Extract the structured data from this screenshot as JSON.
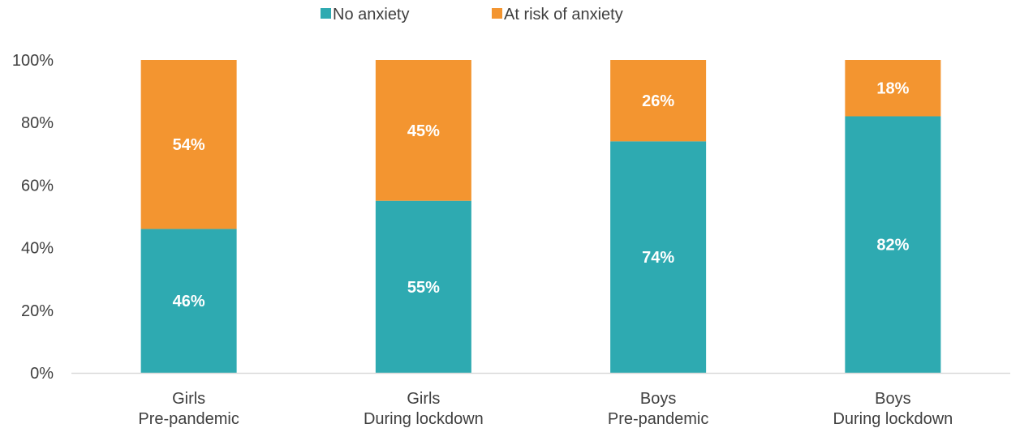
{
  "chart_data": {
    "type": "bar",
    "stacked": true,
    "categories": [
      [
        "Girls",
        "Pre-pandemic"
      ],
      [
        "Girls",
        "During lockdown"
      ],
      [
        "Boys",
        "Pre-pandemic"
      ],
      [
        "Boys",
        "During lockdown"
      ]
    ],
    "series": [
      {
        "name": "No anxiety",
        "color": "#2eaab1",
        "values": [
          46,
          55,
          74,
          82
        ],
        "labels": [
          "46%",
          "55%",
          "74%",
          "82%"
        ]
      },
      {
        "name": "At risk of anxiety",
        "color": "#f39530",
        "values": [
          54,
          45,
          26,
          18
        ],
        "labels": [
          "54%",
          "45%",
          "26%",
          "18%"
        ]
      }
    ],
    "ylim": [
      0,
      100
    ],
    "yticks": [
      0,
      20,
      40,
      60,
      80,
      100
    ],
    "ytick_labels": [
      "0%",
      "20%",
      "40%",
      "60%",
      "80%",
      "100%"
    ],
    "legend_position": "top-center",
    "grid": false
  }
}
